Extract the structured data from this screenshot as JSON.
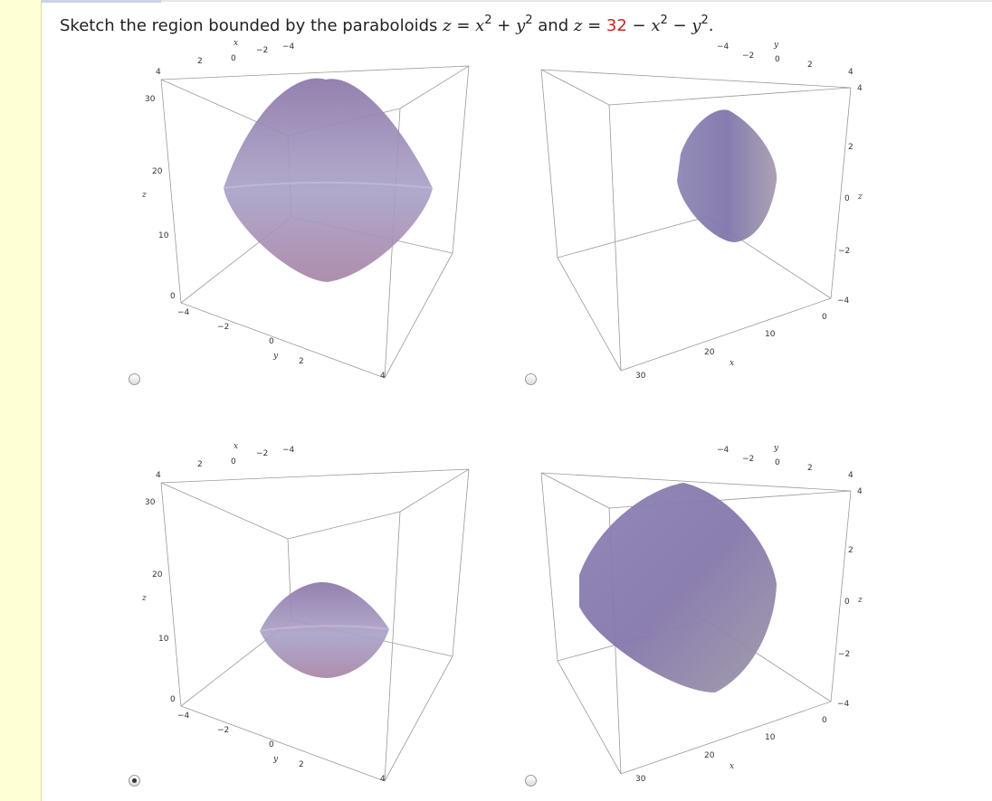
{
  "question": {
    "prefix": "Sketch the region bounded by the paraboloids ",
    "z1": "z",
    "eq1": " = ",
    "x": "x",
    "exp": "2",
    "plus": " + ",
    "y": "y",
    "and": " and ",
    "z2": "z",
    "eq2": " = ",
    "number": "32",
    "minus1": " − ",
    "minus2": " − ",
    "period": "."
  },
  "colors": {
    "accent_red": "#c4281c",
    "surface": "#8f7fb3"
  },
  "choices": [
    {
      "id": "A",
      "selected": false
    },
    {
      "id": "B",
      "selected": false
    },
    {
      "id": "C",
      "selected": true
    },
    {
      "id": "D",
      "selected": false
    }
  ],
  "left_plot": {
    "top_x_label": "x",
    "top_ticks": [
      "4",
      "2",
      "0",
      "−2",
      "−4"
    ],
    "z_label": "z",
    "z_ticks": [
      "30",
      "20",
      "10",
      "0"
    ],
    "y_label": "y",
    "y_ticks": [
      "−4",
      "−2",
      "0",
      "2",
      "4"
    ]
  },
  "right_plot": {
    "top_y_label": "y",
    "top_ticks": [
      "−4",
      "−2",
      "0",
      "2",
      "4"
    ],
    "z_label": "z",
    "z_ticks": [
      "4",
      "2",
      "0",
      "−2",
      "−4"
    ],
    "x_label": "x",
    "bottom_ticks": [
      "0",
      "10",
      "20",
      "30"
    ]
  }
}
